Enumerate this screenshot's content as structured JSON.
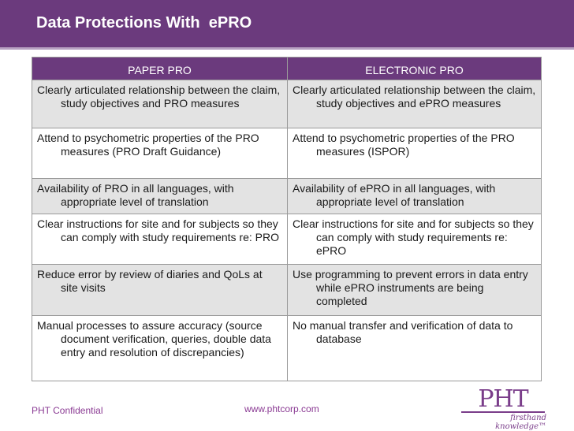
{
  "slide": {
    "title": "Data Protections With  ePRO",
    "colors": {
      "header": "#6b3a7d",
      "accent_text": "#8a3a93",
      "row_shade": "#e3e3e3"
    }
  },
  "table": {
    "headers": [
      "PAPER PRO",
      "ELECTRONIC PRO"
    ],
    "rows": [
      [
        "Clearly articulated relationship between the claim, study objectives and PRO measures",
        "Clearly articulated relationship between the claim, study objectives and ePRO measures"
      ],
      [
        "Attend to psychometric properties of the PRO measures (PRO Draft Guidance)",
        "Attend to psychometric properties of the PRO measures (ISPOR)"
      ],
      [
        "Availability of PRO in all languages, with appropriate level of translation",
        "Availability of ePRO in all languages, with appropriate level of translation"
      ],
      [
        "Clear instructions for site and for subjects so they can comply with study requirements re: PRO",
        "Clear instructions for site and for subjects so they can comply with study requirements re: ePRO"
      ],
      [
        "Reduce error by review of diaries and QoLs at site visits",
        "Use programming to prevent errors in data entry while ePRO instruments are being completed"
      ],
      [
        "Manual processes to assure accuracy (source document verification, queries, double data entry and resolution of discrepancies)",
        "No manual transfer and verification of data to database"
      ]
    ]
  },
  "footer": {
    "confidential": "PHT Confidential",
    "url": "www.phtcorp.com"
  },
  "logo": {
    "mark": "PHT",
    "tagline": "firsthand knowledge™"
  }
}
